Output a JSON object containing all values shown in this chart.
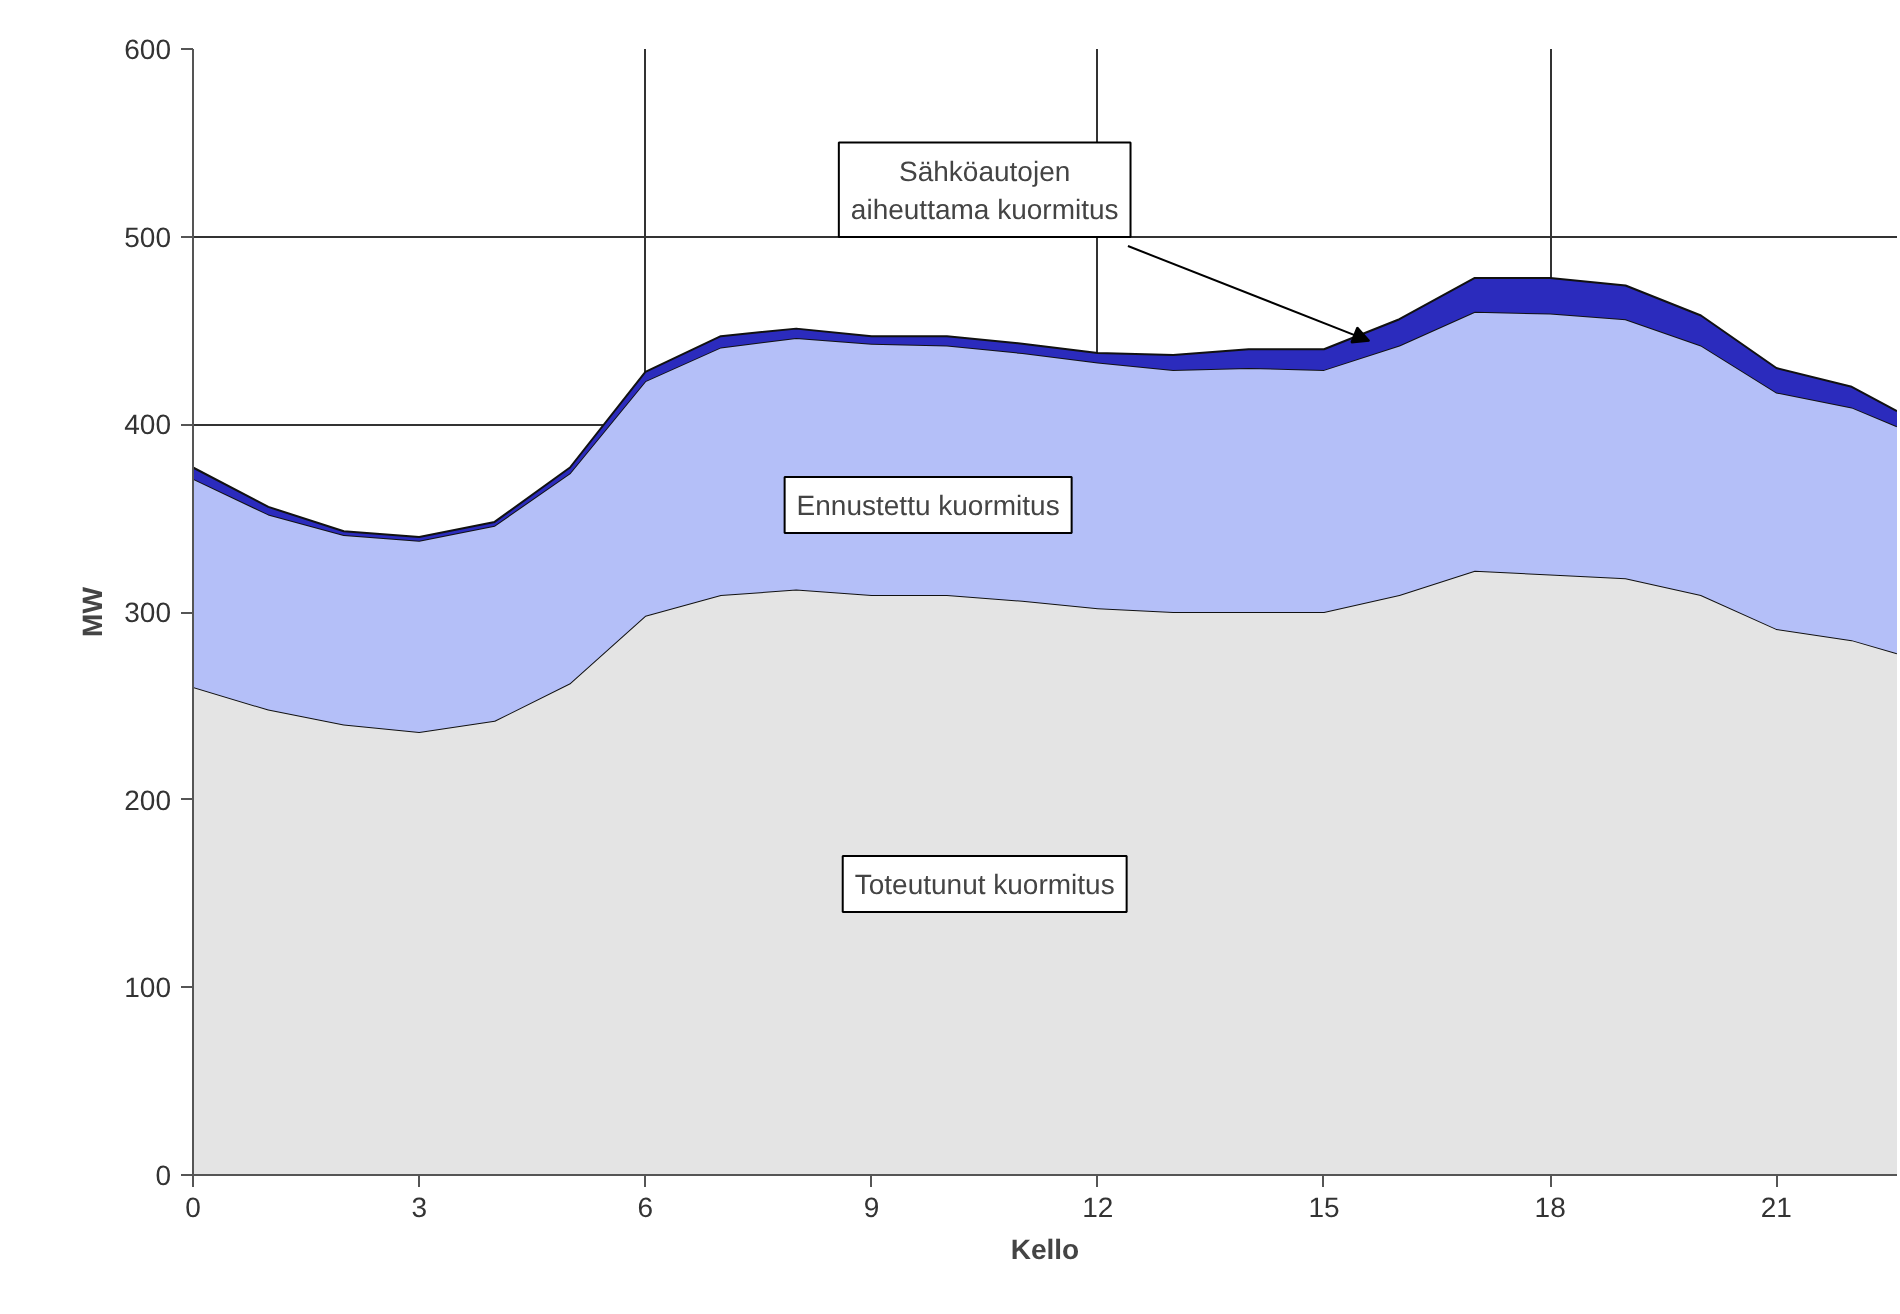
{
  "chart_data": {
    "type": "area",
    "stacked": true,
    "xlabel": "Kello",
    "ylabel": "MW",
    "x": [
      0,
      1,
      2,
      3,
      4,
      5,
      6,
      7,
      8,
      9,
      10,
      11,
      12,
      13,
      14,
      15,
      16,
      17,
      18,
      19,
      20,
      21,
      22,
      22.6
    ],
    "series": [
      {
        "name": "Toteutunut kuormitus",
        "color": "#e4e4e4",
        "values": [
          260,
          248,
          240,
          236,
          242,
          262,
          298,
          309,
          312,
          309,
          309,
          306,
          302,
          300,
          300,
          300,
          309,
          322,
          320,
          318,
          309,
          291,
          285,
          278
        ]
      },
      {
        "name": "Ennustettu kuormitus",
        "color": "#b4bff8",
        "values": [
          111,
          104,
          101,
          102,
          104,
          112,
          125,
          132,
          134,
          134,
          133,
          132,
          131,
          129,
          130,
          129,
          133,
          138,
          139,
          138,
          133,
          126,
          124,
          121
        ]
      },
      {
        "name": "Sähköautojen\naiheuttama kuormitus",
        "color": "#2b2bbd",
        "values": [
          6,
          4,
          2,
          2,
          2,
          3,
          5,
          6,
          5,
          4,
          5,
          5,
          5,
          8,
          10,
          11,
          14,
          18,
          19,
          18,
          16,
          13,
          11,
          8
        ]
      }
    ],
    "xlim": [
      0,
      22.6
    ],
    "ylim": [
      0,
      600
    ],
    "xticks": [
      0,
      3,
      6,
      9,
      12,
      15,
      18,
      21
    ],
    "yticks": [
      0,
      100,
      200,
      300,
      400,
      500,
      600
    ],
    "grid": true,
    "legend": false
  }
}
